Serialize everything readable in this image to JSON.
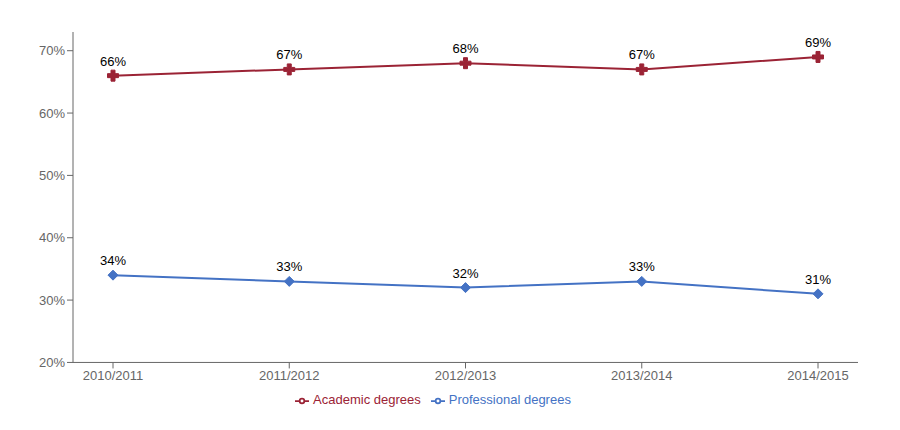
{
  "chart_data": {
    "type": "line",
    "categories": [
      "2010/2011",
      "2011/2012",
      "2012/2013",
      "2013/2014",
      "2014/2015"
    ],
    "series": [
      {
        "name": "Professional degrees",
        "color": "#4472C4",
        "marker": "diamond",
        "values": [
          0.34,
          0.33,
          0.32,
          0.33,
          0.31
        ],
        "value_labels": [
          "34%",
          "33%",
          "32%",
          "33%",
          "31%"
        ]
      },
      {
        "name": "Academic degrees",
        "color": "#9B2335",
        "marker": "plus",
        "values": [
          0.66,
          0.67,
          0.68,
          0.67,
          0.69
        ],
        "value_labels": [
          "66%",
          "67%",
          "68%",
          "67%",
          "69%"
        ]
      }
    ],
    "ylim": [
      0.2,
      0.73
    ],
    "yticks": [
      {
        "value": 0.2,
        "label": "20%"
      },
      {
        "value": 0.3,
        "label": "30%"
      },
      {
        "value": 0.4,
        "label": "40%"
      },
      {
        "value": 0.5,
        "label": "50%"
      },
      {
        "value": 0.6,
        "label": "60%"
      },
      {
        "value": 0.7,
        "label": "70%"
      }
    ],
    "grid": false,
    "legend": "bottom",
    "data_labels": true
  }
}
